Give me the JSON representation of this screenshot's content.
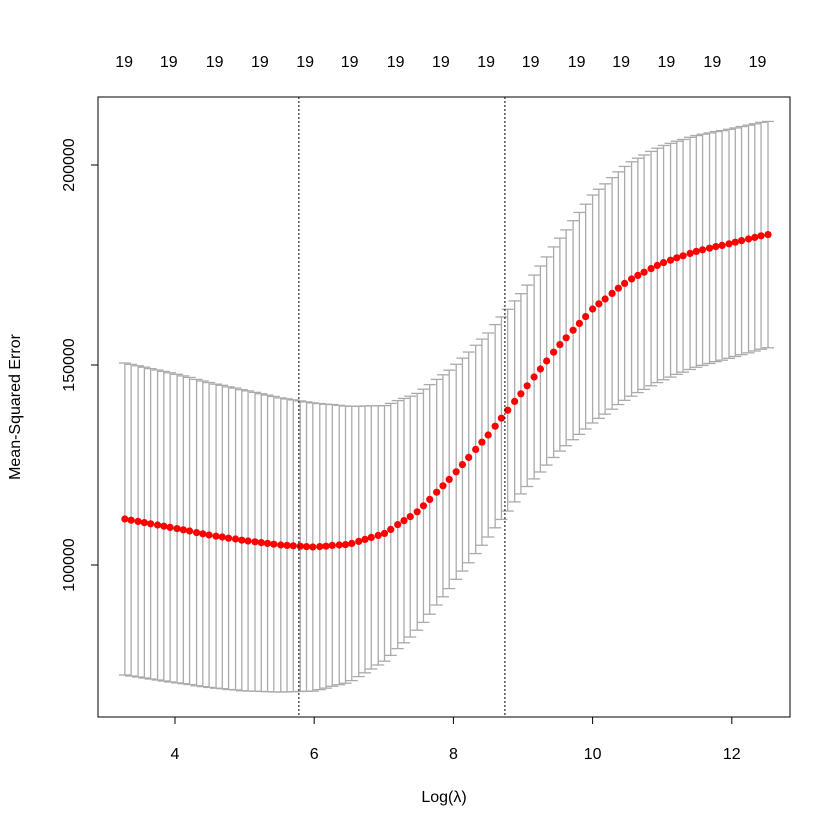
{
  "chart_data": {
    "type": "errorbar",
    "xlabel": "Log(λ)",
    "ylabel": "Mean-Squared Error",
    "x": [
      3.28,
      3.37,
      3.47,
      3.56,
      3.65,
      3.75,
      3.84,
      3.93,
      4.03,
      4.12,
      4.21,
      4.31,
      4.4,
      4.49,
      4.59,
      4.68,
      4.77,
      4.87,
      4.96,
      5.05,
      5.15,
      5.24,
      5.33,
      5.42,
      5.52,
      5.61,
      5.7,
      5.8,
      5.89,
      5.98,
      6.08,
      6.17,
      6.26,
      6.36,
      6.45,
      6.54,
      6.64,
      6.73,
      6.82,
      6.92,
      7.01,
      7.1,
      7.2,
      7.29,
      7.38,
      7.48,
      7.57,
      7.66,
      7.76,
      7.85,
      7.94,
      8.04,
      8.13,
      8.22,
      8.32,
      8.41,
      8.5,
      8.6,
      8.69,
      8.78,
      8.88,
      8.97,
      9.06,
      9.16,
      9.25,
      9.34,
      9.44,
      9.53,
      9.62,
      9.72,
      9.81,
      9.9,
      10,
      10.09,
      10.18,
      10.28,
      10.37,
      10.46,
      10.56,
      10.65,
      10.74,
      10.84,
      10.93,
      11.02,
      11.12,
      11.21,
      11.3,
      11.4,
      11.49,
      11.58,
      11.68,
      11.77,
      11.86,
      11.96,
      12.05,
      12.14,
      12.24,
      12.33,
      12.42,
      12.52
    ],
    "values": [
      111500,
      111200,
      110900,
      110600,
      110300,
      110000,
      109700,
      109400,
      109100,
      108800,
      108500,
      108100,
      107800,
      107500,
      107200,
      107000,
      106700,
      106500,
      106200,
      106000,
      105800,
      105600,
      105400,
      105200,
      105000,
      104900,
      104800,
      104700,
      104600,
      104500,
      104600,
      104700,
      104900,
      105000,
      105100,
      105400,
      105900,
      106400,
      106900,
      107400,
      107900,
      108900,
      110100,
      111100,
      112100,
      113300,
      114800,
      116400,
      118200,
      119800,
      121400,
      123300,
      125100,
      126900,
      128900,
      130700,
      132500,
      134700,
      136700,
      138700,
      140900,
      142800,
      144800,
      147000,
      149000,
      151000,
      153200,
      155100,
      156800,
      158700,
      160400,
      162100,
      164000,
      165300,
      166500,
      167900,
      169200,
      170400,
      171500,
      172400,
      173200,
      174100,
      174900,
      175600,
      176200,
      176800,
      177300,
      177900,
      178400,
      178800,
      179200,
      179600,
      179900,
      180300,
      180700,
      181100,
      181500,
      181900,
      182300,
      182600
    ],
    "errors": [
      39000,
      38950,
      38900,
      38850,
      38800,
      38750,
      38700,
      38650,
      38570,
      38480,
      38390,
      38290,
      38200,
      38110,
      38010,
      37920,
      37830,
      37730,
      37640,
      37520,
      37360,
      37220,
      37070,
      36930,
      36770,
      36620,
      36480,
      36320,
      36180,
      36030,
      35760,
      35490,
      35220,
      34920,
      34650,
      34300,
      33800,
      33350,
      32900,
      32400,
      31950,
      31500,
      31000,
      30550,
      30100,
      29600,
      29150,
      28700,
      28200,
      27750,
      27300,
      26880,
      26610,
      26340,
      26040,
      25770,
      25500,
      25400,
      25310,
      25220,
      25120,
      25030,
      25180,
      25480,
      25750,
      26020,
      26320,
      26620,
      26980,
      27380,
      27740,
      28100,
      28500,
      28640,
      28790,
      28950,
      29090,
      29240,
      29300,
      29300,
      29300,
      29300,
      29300,
      29290,
      29220,
      29150,
      29090,
      29020,
      28960,
      28890,
      28820,
      28760,
      28700,
      28630,
      28570,
      28520,
      28460,
      28400,
      28350,
      28290
    ],
    "color": "#ff0000",
    "error_color": "#aaaaaa",
    "vlines": [
      5.78,
      8.74
    ],
    "xlim": [
      2.894,
      12.836
    ],
    "ylim": [
      62000,
      217000
    ],
    "xticks": [
      4,
      6,
      8,
      10,
      12
    ],
    "yticks": [
      100000,
      150000,
      200000
    ],
    "top_ticks": [
      {
        "value": 3.27,
        "label": "19"
      },
      {
        "value": 3.91,
        "label": "19"
      },
      {
        "value": 4.57,
        "label": "19"
      },
      {
        "value": 5.22,
        "label": "19"
      },
      {
        "value": 5.87,
        "label": "19"
      },
      {
        "value": 6.51,
        "label": "19"
      },
      {
        "value": 7.17,
        "label": "19"
      },
      {
        "value": 7.82,
        "label": "19"
      },
      {
        "value": 8.47,
        "label": "19"
      },
      {
        "value": 9.11,
        "label": "19"
      },
      {
        "value": 9.77,
        "label": "19"
      },
      {
        "value": 10.41,
        "label": "19"
      },
      {
        "value": 11.06,
        "label": "19"
      },
      {
        "value": 11.72,
        "label": "19"
      },
      {
        "value": 12.37,
        "label": "19"
      }
    ]
  }
}
